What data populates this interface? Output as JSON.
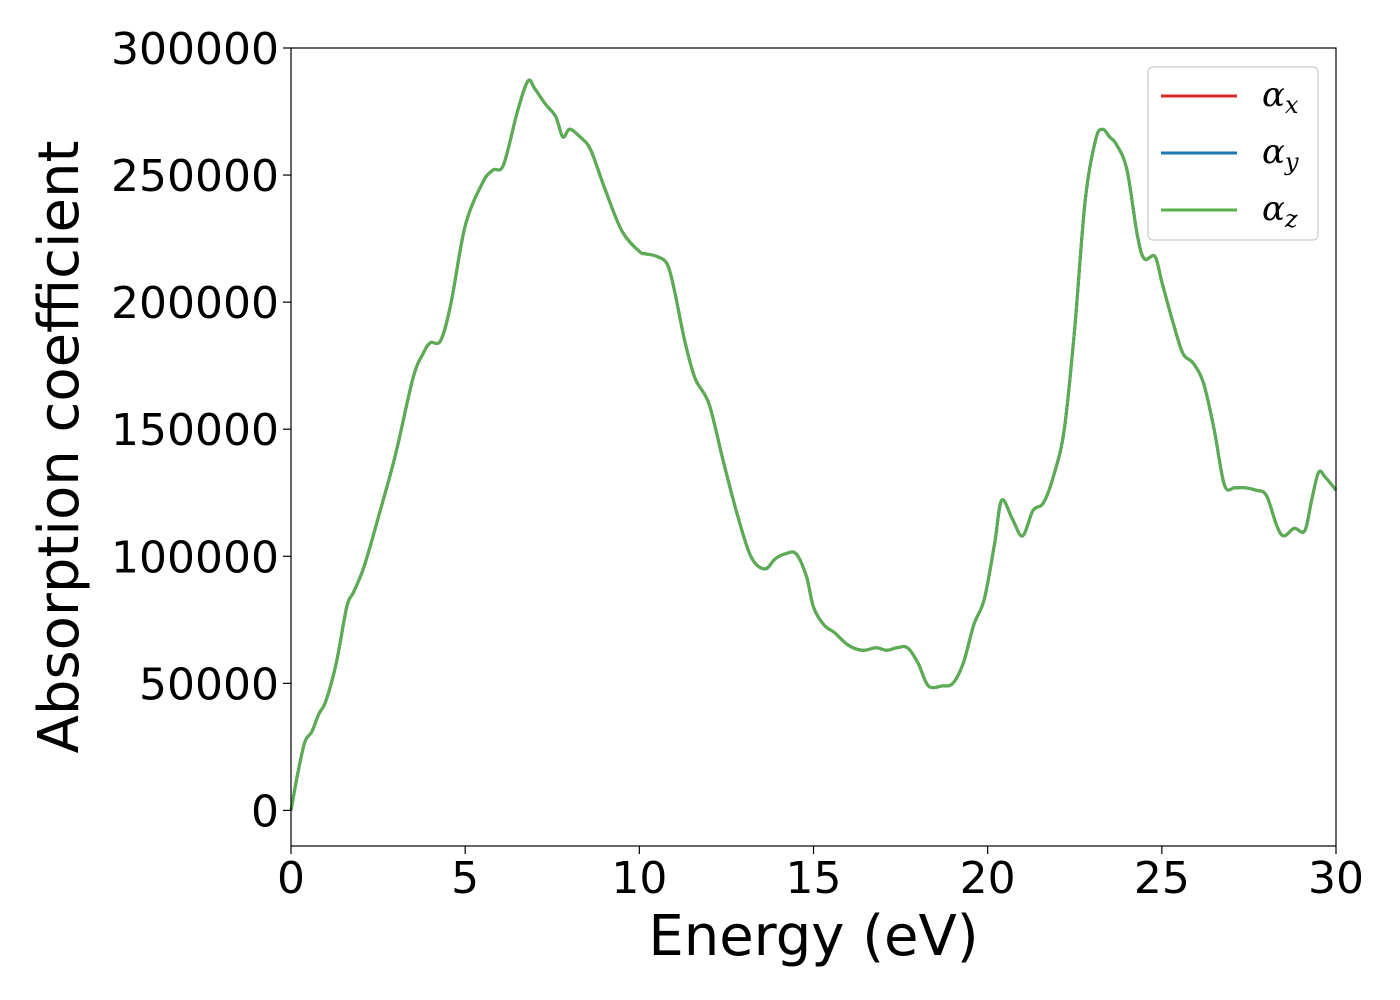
{
  "chart_data": {
    "type": "line",
    "xlabel": "Energy (eV)",
    "ylabel": "Absorption coefficient",
    "xlim": [
      0,
      30
    ],
    "ylim": [
      -14000,
      300000
    ],
    "xticks": [
      0,
      5,
      10,
      15,
      20,
      25,
      30
    ],
    "yticks": [
      0,
      50000,
      100000,
      150000,
      200000,
      250000,
      300000
    ],
    "grid": false,
    "legend_position": "top-right",
    "x": [
      0,
      0.2,
      0.4,
      0.6,
      0.8,
      1.0,
      1.3,
      1.6,
      1.8,
      2.1,
      2.5,
      3.0,
      3.5,
      3.8,
      4.0,
      4.3,
      4.6,
      5.0,
      5.5,
      5.8,
      6.1,
      6.5,
      6.8,
      7.0,
      7.3,
      7.6,
      7.8,
      8.0,
      8.3,
      8.6,
      9.0,
      9.5,
      10.0,
      10.2,
      10.5,
      10.8,
      11.0,
      11.3,
      11.6,
      12.0,
      12.4,
      12.8,
      13.2,
      13.6,
      13.9,
      14.2,
      14.5,
      14.8,
      15.0,
      15.3,
      15.6,
      16.0,
      16.4,
      16.8,
      17.1,
      17.4,
      17.7,
      18.0,
      18.3,
      18.7,
      19.0,
      19.3,
      19.6,
      19.9,
      20.2,
      20.4,
      20.7,
      21.0,
      21.3,
      21.6,
      21.9,
      22.2,
      22.5,
      22.8,
      23.1,
      23.3,
      23.5,
      23.7,
      24.0,
      24.3,
      24.5,
      24.8,
      25.0,
      25.3,
      25.6,
      25.9,
      26.2,
      26.5,
      26.8,
      27.1,
      27.4,
      27.7,
      28.0,
      28.3,
      28.5,
      28.8,
      29.1,
      29.3,
      29.5,
      29.7,
      30.0
    ],
    "series": [
      {
        "name": "αx",
        "color": "#d62728",
        "values": [
          0,
          15000,
          27000,
          31000,
          38000,
          43000,
          58000,
          80000,
          86000,
          96000,
          115000,
          140000,
          170000,
          180000,
          184000,
          185000,
          200000,
          230000,
          247000,
          252000,
          254000,
          275000,
          287000,
          284000,
          278000,
          273000,
          265000,
          268000,
          265000,
          260000,
          245000,
          228000,
          220000,
          219000,
          218000,
          215000,
          205000,
          185000,
          170000,
          160000,
          138000,
          117000,
          100000,
          95000,
          99000,
          101000,
          101000,
          92000,
          80000,
          73000,
          70000,
          65000,
          63000,
          64000,
          63000,
          64000,
          64000,
          58000,
          49000,
          49000,
          50000,
          58000,
          73000,
          83000,
          105000,
          122000,
          115000,
          108000,
          118000,
          121000,
          132000,
          150000,
          190000,
          240000,
          264000,
          268000,
          265000,
          262000,
          252000,
          226000,
          217000,
          218000,
          208000,
          193000,
          180000,
          176000,
          168000,
          150000,
          128000,
          127000,
          127000,
          126000,
          124000,
          112000,
          108000,
          111000,
          110000,
          122000,
          133000,
          131000,
          126000
        ]
      },
      {
        "name": "αy",
        "color": "#1f77b4",
        "values": [
          0,
          15000,
          27000,
          31000,
          38000,
          43000,
          58000,
          80000,
          86000,
          96000,
          115000,
          140000,
          170000,
          180000,
          184000,
          185000,
          200000,
          230000,
          247000,
          252000,
          254000,
          275000,
          287000,
          284000,
          278000,
          273000,
          265000,
          268000,
          265000,
          260000,
          245000,
          228000,
          220000,
          219000,
          218000,
          215000,
          205000,
          185000,
          170000,
          160000,
          138000,
          117000,
          100000,
          95000,
          99000,
          101000,
          101000,
          92000,
          80000,
          73000,
          70000,
          65000,
          63000,
          64000,
          63000,
          64000,
          64000,
          58000,
          49000,
          49000,
          50000,
          58000,
          73000,
          83000,
          105000,
          122000,
          115000,
          108000,
          118000,
          121000,
          132000,
          150000,
          190000,
          240000,
          264000,
          268000,
          265000,
          262000,
          252000,
          226000,
          217000,
          218000,
          208000,
          193000,
          180000,
          176000,
          168000,
          150000,
          128000,
          127000,
          127000,
          126000,
          124000,
          112000,
          108000,
          111000,
          110000,
          122000,
          133000,
          131000,
          126000
        ]
      },
      {
        "name": "αz",
        "color": "#5aae50",
        "values": [
          0,
          15000,
          27000,
          31000,
          38000,
          43000,
          58000,
          80000,
          86000,
          96000,
          115000,
          140000,
          170000,
          180000,
          184000,
          185000,
          200000,
          230000,
          247000,
          252000,
          254000,
          275000,
          287000,
          284000,
          278000,
          273000,
          265000,
          268000,
          265000,
          260000,
          245000,
          228000,
          220000,
          219000,
          218000,
          215000,
          205000,
          185000,
          170000,
          160000,
          138000,
          117000,
          100000,
          95000,
          99000,
          101000,
          101000,
          92000,
          80000,
          73000,
          70000,
          65000,
          63000,
          64000,
          63000,
          64000,
          64000,
          58000,
          49000,
          49000,
          50000,
          58000,
          73000,
          83000,
          105000,
          122000,
          115000,
          108000,
          118000,
          121000,
          132000,
          150000,
          190000,
          240000,
          264000,
          268000,
          265000,
          262000,
          252000,
          226000,
          217000,
          218000,
          208000,
          193000,
          180000,
          176000,
          168000,
          150000,
          128000,
          127000,
          127000,
          126000,
          124000,
          112000,
          108000,
          111000,
          110000,
          122000,
          133000,
          131000,
          126000
        ]
      }
    ],
    "legend": [
      {
        "symbol": "α",
        "sub": "x"
      },
      {
        "symbol": "α",
        "sub": "y"
      },
      {
        "symbol": "α",
        "sub": "z"
      }
    ]
  }
}
